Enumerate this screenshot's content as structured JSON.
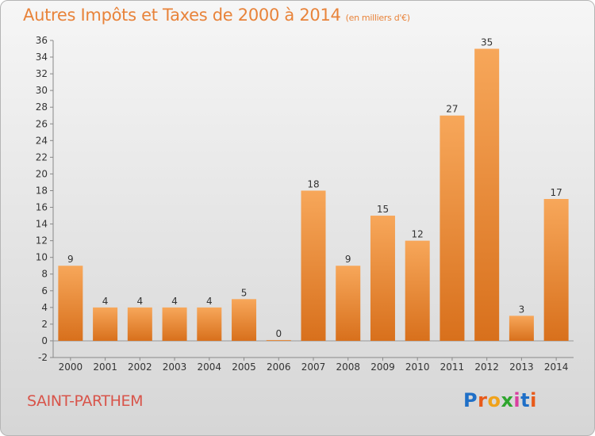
{
  "header": {
    "title": "Autres Impôts et Taxes de 2000 à 2014",
    "unit": "(en milliers d'€)"
  },
  "footer": {
    "city": "SAINT-PARTHEM",
    "logo": "Proxiti"
  },
  "colors": {
    "title": "#e8833a",
    "city": "#d8544a",
    "bar_light": "#f7a75a",
    "bar_dark": "#d8701c",
    "logo_letters": [
      "#1f6fc7",
      "#e85a1a",
      "#f0a21a",
      "#2ea52e",
      "#d93ea0",
      "#1f6fc7",
      "#e85a1a"
    ]
  },
  "chart_data": {
    "type": "bar",
    "title": "Autres Impôts et Taxes de 2000 à 2014",
    "subtitle": "(en milliers d'€)",
    "categories": [
      "2000",
      "2001",
      "2002",
      "2003",
      "2004",
      "2005",
      "2006",
      "2007",
      "2008",
      "2009",
      "2010",
      "2011",
      "2012",
      "2013",
      "2014"
    ],
    "values": [
      9,
      4,
      4,
      4,
      4,
      5,
      0,
      18,
      9,
      15,
      12,
      27,
      35,
      3,
      17
    ],
    "ylim": [
      -2,
      36
    ],
    "yticks": [
      -2,
      0,
      2,
      4,
      6,
      8,
      10,
      12,
      14,
      16,
      18,
      20,
      22,
      24,
      26,
      28,
      30,
      32,
      34,
      36
    ],
    "grid": false,
    "legend": "none"
  }
}
